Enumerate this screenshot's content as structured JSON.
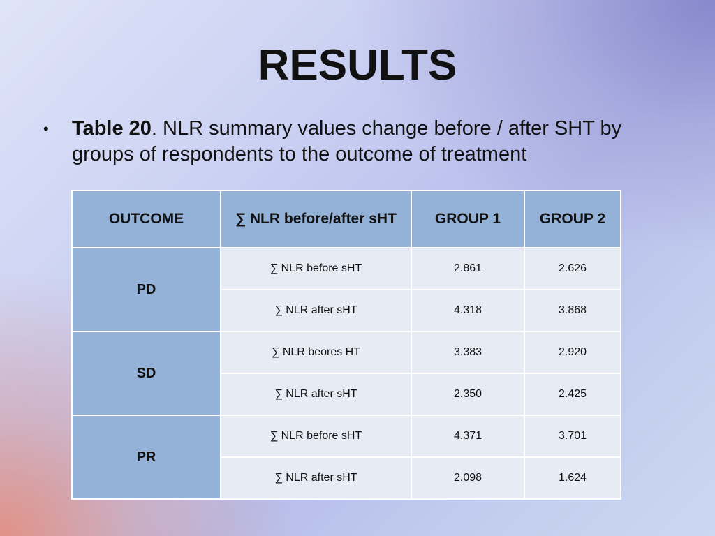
{
  "slide": {
    "title": "RESULTS",
    "bullet": {
      "symbol": "•",
      "label_bold": "Table 20",
      "text": ". NLR summary values change before / after SHT by groups of respondents to the outcome of treatment"
    }
  },
  "table": {
    "headers": [
      "OUTCOME",
      "∑ NLR before/after sHT",
      "GROUP 1",
      "GROUP 2"
    ],
    "groups": [
      {
        "outcome": "PD",
        "rows": [
          {
            "measure": "∑ NLR before sHT",
            "group1": "2.861",
            "group2": "2.626"
          },
          {
            "measure": "∑ NLR after sHT",
            "group1": "4.318",
            "group2": "3.868"
          }
        ]
      },
      {
        "outcome": "SD",
        "rows": [
          {
            "measure": "∑ NLR beores HT",
            "group1": "3.383",
            "group2": "2.920"
          },
          {
            "measure": "∑ NLR after sHT",
            "group1": "2.350",
            "group2": "2.425"
          }
        ]
      },
      {
        "outcome": "PR",
        "rows": [
          {
            "measure": "∑ NLR before sHT",
            "group1": "4.371",
            "group2": "3.701"
          },
          {
            "measure": "∑ NLR after sHT",
            "group1": "2.098",
            "group2": "1.624"
          }
        ]
      }
    ]
  },
  "colors": {
    "header_fill": "#94b2d7",
    "cell_fill": "#e7ebf4",
    "border": "#ffffff"
  }
}
